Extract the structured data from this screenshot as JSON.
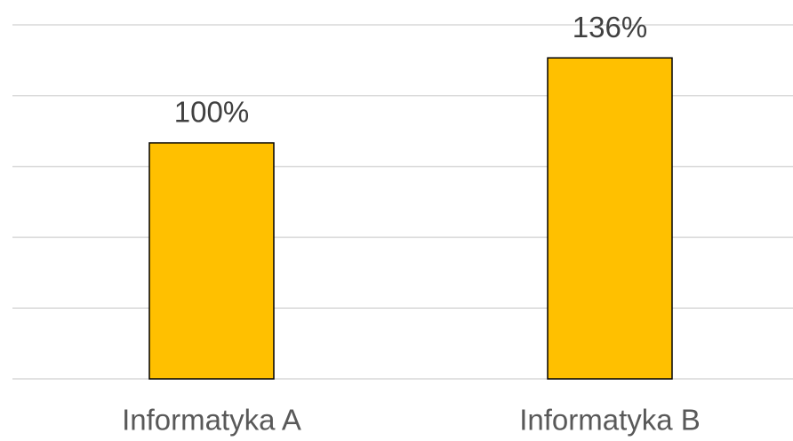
{
  "chart_data": {
    "type": "bar",
    "categories": [
      "Informatyka A",
      "Informatyka B"
    ],
    "values": [
      100,
      136
    ],
    "value_labels": [
      "100%",
      "136%"
    ],
    "color": "#ffc000",
    "ylim": [
      0,
      150
    ],
    "yticks": [
      0,
      30,
      60,
      90,
      120,
      150
    ],
    "grid": true
  }
}
